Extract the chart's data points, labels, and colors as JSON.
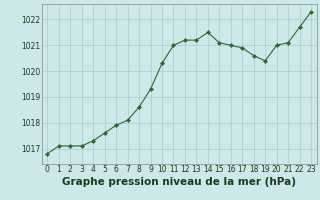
{
  "x": [
    0,
    1,
    2,
    3,
    4,
    5,
    6,
    7,
    8,
    9,
    10,
    11,
    12,
    13,
    14,
    15,
    16,
    17,
    18,
    19,
    20,
    21,
    22,
    23
  ],
  "y": [
    1016.8,
    1017.1,
    1017.1,
    1017.1,
    1017.3,
    1017.6,
    1017.9,
    1018.1,
    1018.6,
    1019.3,
    1020.3,
    1021.0,
    1021.2,
    1021.2,
    1021.5,
    1021.1,
    1021.0,
    1020.9,
    1020.6,
    1020.4,
    1021.0,
    1021.1,
    1021.7,
    1022.3
  ],
  "line_color": "#2d6a2d",
  "marker_color": "#2d6a2d",
  "bg_color": "#cce8e8",
  "grid_color": "#aacccc",
  "xlabel": "Graphe pression niveau de la mer (hPa)",
  "xlabel_color": "#1a3a1a",
  "yticks": [
    1017,
    1018,
    1019,
    1020,
    1021,
    1022
  ],
  "xticks": [
    0,
    1,
    2,
    3,
    4,
    5,
    6,
    7,
    8,
    9,
    10,
    11,
    12,
    13,
    14,
    15,
    16,
    17,
    18,
    19,
    20,
    21,
    22,
    23
  ],
  "ylim": [
    1016.4,
    1022.6
  ],
  "xlim": [
    -0.5,
    23.5
  ],
  "tick_color": "#1a3a1a",
  "tick_fontsize": 5.5,
  "xlabel_fontsize": 7.5,
  "linewidth": 0.8,
  "markersize": 2.0
}
